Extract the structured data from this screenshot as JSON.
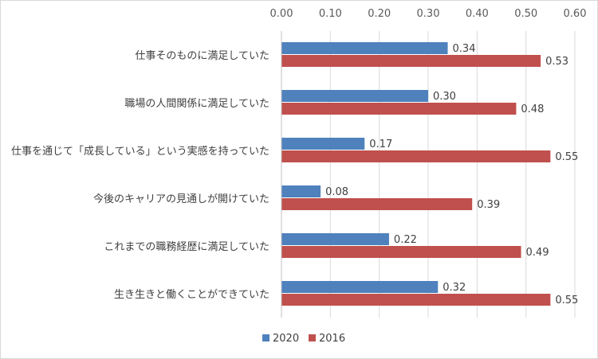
{
  "chart_data": {
    "type": "bar",
    "orientation": "horizontal",
    "categories": [
      "仕事そのものに満足していた",
      "職場の人間関係に満足していた",
      "仕事を通じて「成長している」という実感を持っていた",
      "今後のキャリアの見通しが開けていた",
      "これまでの職務経歴に満足していた",
      "生き生きと働くことができていた"
    ],
    "series": [
      {
        "name": "2020",
        "color": "#4f81bd",
        "values": [
          0.34,
          0.3,
          0.17,
          0.08,
          0.22,
          0.32
        ],
        "labels": [
          "0.34",
          "0.30",
          "0.17",
          "0.08",
          "0.22",
          "0.32"
        ]
      },
      {
        "name": "2016",
        "color": "#c0504d",
        "values": [
          0.53,
          0.48,
          0.55,
          0.39,
          0.49,
          0.55
        ],
        "labels": [
          "0.53",
          "0.48",
          "0.55",
          "0.39",
          "0.49",
          "0.55"
        ]
      }
    ],
    "xlim": [
      0,
      0.6
    ],
    "x_ticks": [
      "0.00",
      "0.10",
      "0.20",
      "0.30",
      "0.40",
      "0.50",
      "0.60"
    ],
    "x_axis_position": "top",
    "grid": true,
    "legend": "bottom",
    "title": "",
    "xlabel": "",
    "ylabel": ""
  }
}
